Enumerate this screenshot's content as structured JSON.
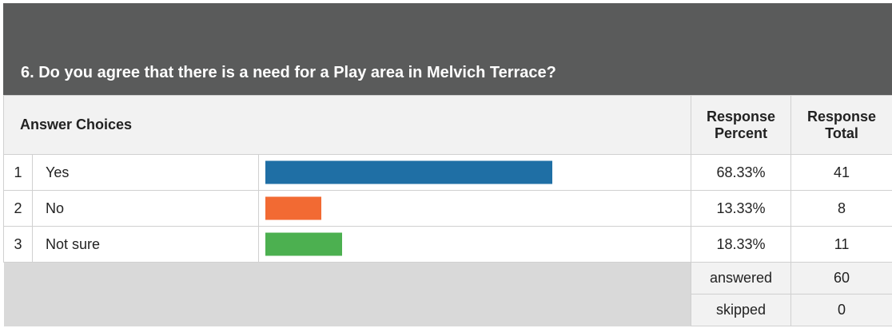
{
  "question": {
    "title": "6. Do you agree that there is a need for a Play area in Melvich Terrace?"
  },
  "table": {
    "answer_choices_label": "Answer Choices",
    "response_percent_label_1": "Response",
    "response_percent_label_2": "Percent",
    "response_total_label_1": "Response",
    "response_total_label_2": "Total",
    "rows": [
      {
        "index": "1",
        "choice": "Yes",
        "percent": "68.33%",
        "total": "41",
        "color": "#1f6fa5"
      },
      {
        "index": "2",
        "choice": "No",
        "percent": "13.33%",
        "total": "8",
        "color": "#f26a33"
      },
      {
        "index": "3",
        "choice": "Not sure",
        "percent": "18.33%",
        "total": "11",
        "color": "#4cb050"
      }
    ],
    "answered_label": "answered",
    "answered_value": "60",
    "skipped_label": "skipped",
    "skipped_value": "0"
  },
  "chart_data": {
    "type": "bar",
    "orientation": "horizontal",
    "categories": [
      "Yes",
      "No",
      "Not sure"
    ],
    "values": [
      68.33,
      13.33,
      18.33
    ],
    "totals": [
      41,
      8,
      11
    ],
    "colors": [
      "#1f6fa5",
      "#f26a33",
      "#4cb050"
    ],
    "title": "6. Do you agree that there is a need for a Play area in Melvich Terrace?",
    "xlim": [
      0,
      100
    ],
    "answered": 60,
    "skipped": 0
  }
}
